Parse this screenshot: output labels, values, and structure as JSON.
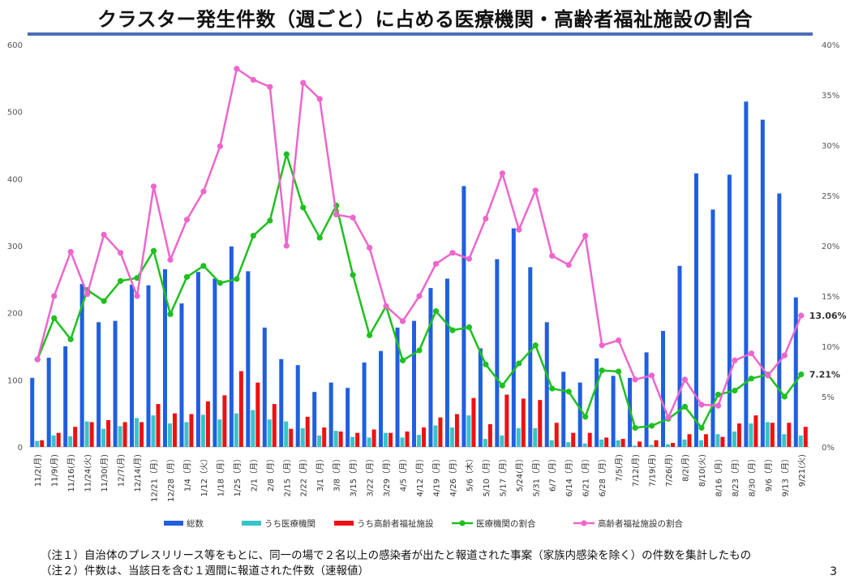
{
  "title": "クラスター発生件数（週ごと）に占める医療機関・高齢者福祉施設の割合",
  "notes": [
    "（注１）自治体のプレスリリース等をもとに、同一の場で２名以上の感染者が出たと報道された事案（家族内感染を除く）の件数を集計したもの",
    "（注２）件数は、当該日を含む１週間に報道された件数（速報値）"
  ],
  "page_number": "3",
  "colors": {
    "total": "#1f5fe0",
    "medical": "#36c4c8",
    "elderly": "#ee1111",
    "medical_ratio": "#1ec01e",
    "elderly_ratio": "#ee66cc"
  },
  "chart_data": {
    "type": "bar",
    "categories": [
      "11/2(月)",
      "11/9(月)",
      "11/16(月)",
      "11/24(火)",
      "11/30(月)",
      "12/7(月)",
      "12/14(月)",
      "12/21（月）",
      "12/28（月）",
      "1/4（月）",
      "1/12（火）",
      "1/18（月）",
      "1/25（月）",
      "2/1（月）",
      "2/8（月）",
      "2/15（月）",
      "2/22（月）",
      "3/1（月）",
      "3/8（月）",
      "3/15（月）",
      "3/22（月）",
      "3/29（月）",
      "4/5（月）",
      "4/12（月）",
      "4/19（月）",
      "4/26（月）",
      "5/6（木）",
      "5/10（月）",
      "5/17（月）",
      "5/24(月）",
      "5/31（月）",
      "6/7（月）",
      "6/14（月）",
      "6/21（月）",
      "6/28（月）",
      "7/5(月)",
      "7/12(月)",
      "7/19(月)",
      "7/26(月)",
      "8/2(月)",
      "8/10(火)",
      "8/16（月）",
      "8/23（月）",
      "8/30（月）",
      "9/6（月）",
      "9/13（月）",
      "9/21(火)"
    ],
    "series": [
      {
        "name": "総数",
        "kind": "bar",
        "axis": "left",
        "values": [
          103,
          133,
          150,
          243,
          186,
          188,
          242,
          241,
          265,
          214,
          261,
          251,
          299,
          262,
          178,
          131,
          122,
          82,
          96,
          88,
          126,
          143,
          178,
          188,
          237,
          251,
          389,
          147,
          280,
          326,
          268,
          186,
          112,
          96,
          132,
          106,
          103,
          141,
          173,
          270,
          408,
          354,
          406,
          515,
          488,
          378,
          223
        ]
      },
      {
        "name": "うち医療機関",
        "kind": "bar",
        "axis": "left",
        "values": [
          9,
          17,
          16,
          38,
          27,
          31,
          43,
          47,
          35,
          37,
          48,
          41,
          50,
          55,
          41,
          38,
          28,
          17,
          24,
          15,
          14,
          21,
          14,
          18,
          32,
          29,
          47,
          12,
          17,
          28,
          28,
          10,
          7,
          5,
          11,
          10,
          2,
          3,
          4,
          11,
          10,
          19,
          23,
          35,
          37,
          19,
          17
        ]
      },
      {
        "name": "うち高齢者福祉施設",
        "kind": "bar",
        "axis": "left",
        "values": [
          10,
          21,
          30,
          37,
          40,
          37,
          37,
          64,
          50,
          49,
          68,
          77,
          113,
          96,
          64,
          27,
          45,
          29,
          23,
          21,
          26,
          21,
          23,
          29,
          44,
          49,
          73,
          34,
          78,
          72,
          70,
          36,
          21,
          21,
          14,
          12,
          8,
          10,
          6,
          19,
          19,
          15,
          35,
          47,
          36,
          36,
          30
        ]
      },
      {
        "name": "医療機関の割合",
        "kind": "line",
        "axis": "right",
        "values": [
          8.7,
          12.8,
          10.7,
          15.6,
          14.5,
          16.5,
          16.8,
          19.5,
          13.2,
          16.9,
          18.0,
          16.3,
          16.7,
          21.0,
          22.5,
          29.1,
          23.8,
          20.8,
          24.0,
          17.1,
          11.1,
          14.0,
          8.6,
          9.6,
          13.5,
          11.6,
          11.9,
          8.2,
          6.1,
          8.3,
          10.1,
          5.8,
          5.5,
          3.0,
          7.6,
          7.5,
          1.9,
          2.1,
          2.8,
          4.0,
          1.9,
          5.2,
          5.6,
          6.8,
          7.2,
          5.0,
          7.21
        ]
      },
      {
        "name": "高齢者福祉施設の割合",
        "kind": "line",
        "axis": "right",
        "values": [
          8.7,
          15.0,
          19.4,
          15.2,
          21.1,
          19.3,
          15.0,
          25.9,
          18.6,
          22.6,
          25.4,
          29.9,
          37.6,
          36.5,
          35.8,
          20.0,
          36.2,
          34.6,
          23.1,
          22.8,
          19.8,
          14.0,
          12.5,
          15.0,
          18.2,
          19.3,
          18.7,
          22.7,
          27.2,
          21.6,
          25.5,
          19.0,
          18.1,
          21.0,
          10.1,
          10.6,
          6.7,
          7.1,
          2.9,
          6.7,
          4.2,
          4.1,
          8.6,
          9.3,
          7.1,
          9.1,
          13.06
        ]
      }
    ],
    "y_left": {
      "min": 0,
      "max": 600,
      "ticks": [
        "0",
        "100",
        "200",
        "300",
        "400",
        "500",
        "600"
      ]
    },
    "y_right": {
      "min": 0,
      "max": 40,
      "ticks": [
        "0%",
        "5%",
        "10%",
        "15%",
        "20%",
        "25%",
        "30%",
        "35%",
        "40%"
      ]
    },
    "end_labels": {
      "medical_ratio": "7.21%",
      "elderly_ratio": "13.06%"
    },
    "legend": [
      "総数",
      "うち医療機関",
      "うち高齢者福祉施設",
      "医療機関の割合",
      "高齢者福祉施設の割合"
    ],
    "grid": false,
    "legend_position": "bottom"
  }
}
